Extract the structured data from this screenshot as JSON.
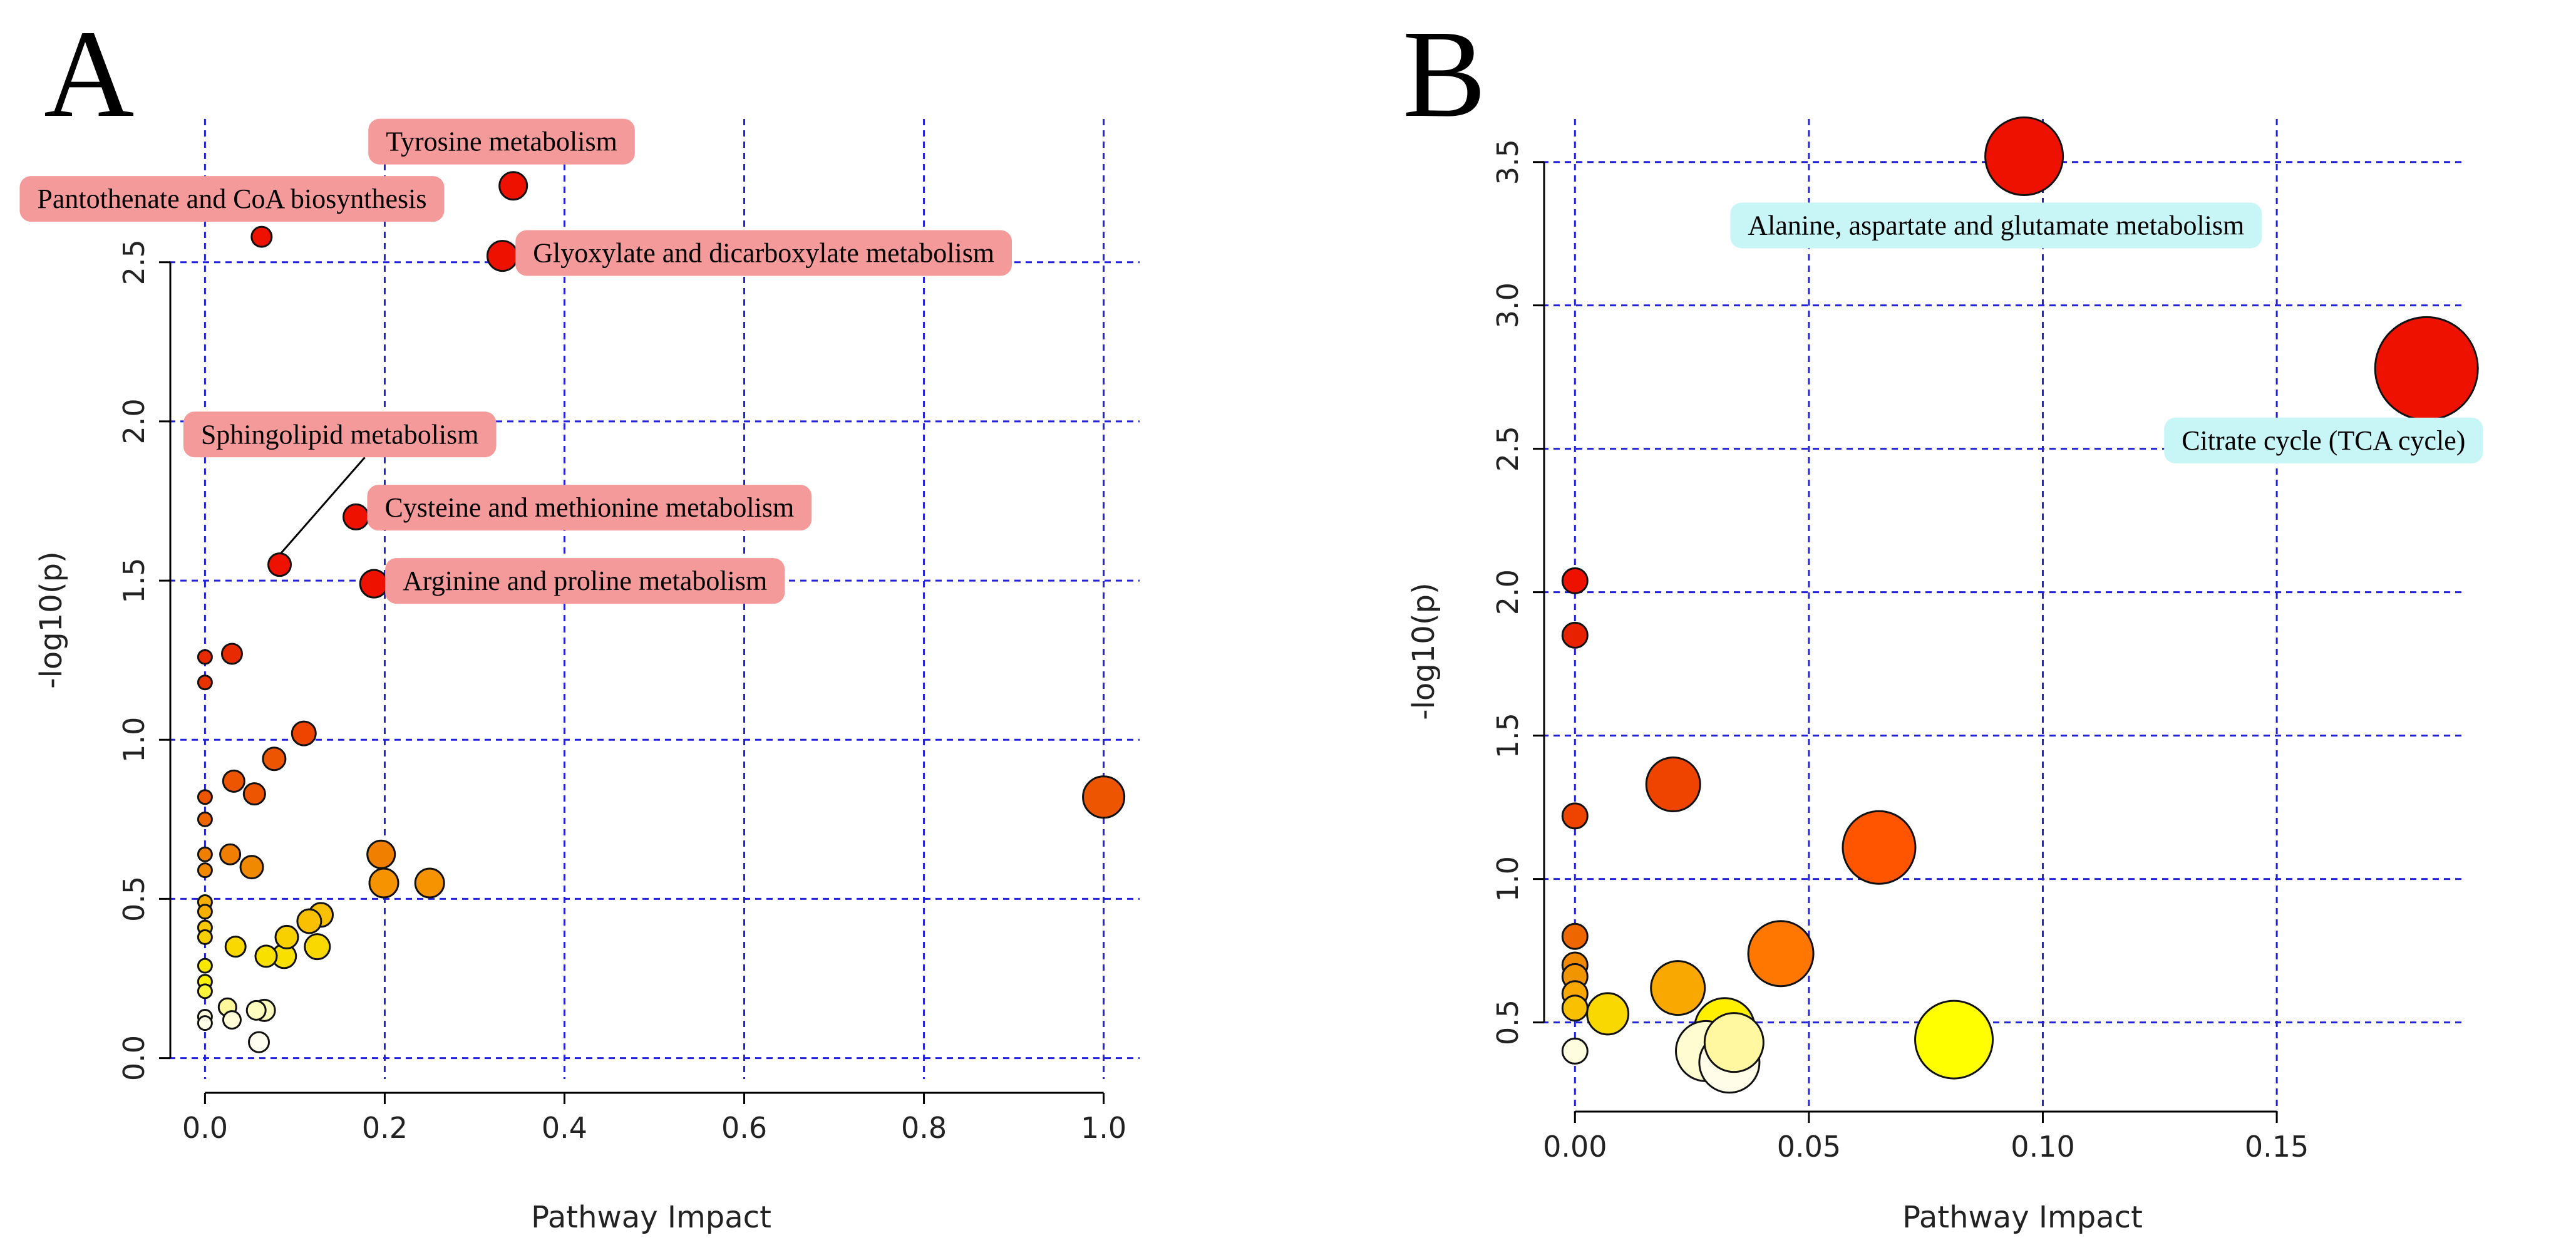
{
  "chart_data": [
    {
      "panel_label": "A",
      "type": "scatter",
      "xlabel": "Pathway Impact",
      "ylabel": "-log10(p)",
      "xlim": [
        -0.04,
        1.04
      ],
      "ylim": [
        -0.05,
        2.95
      ],
      "xticks": [
        0.0,
        0.2,
        0.4,
        0.6,
        0.8,
        1.0
      ],
      "xtick_labels": [
        "0.0",
        "0.2",
        "0.4",
        "0.6",
        "0.8",
        "1.0"
      ],
      "yticks": [
        0.0,
        0.5,
        1.0,
        1.5,
        2.0,
        2.5
      ],
      "ytick_labels": [
        "0.0",
        "0.5",
        "1.0",
        "1.5",
        "2.0",
        "2.5"
      ],
      "grid": true,
      "annotation_color": "#f59a9a",
      "points": [
        {
          "x": 0.343,
          "y": 2.74,
          "r": 22,
          "color": "#ee1100"
        },
        {
          "x": 0.063,
          "y": 2.58,
          "r": 16,
          "color": "#ee1100"
        },
        {
          "x": 0.331,
          "y": 2.52,
          "r": 24,
          "color": "#ee1100"
        },
        {
          "x": 0.168,
          "y": 1.7,
          "r": 20,
          "color": "#ee1100"
        },
        {
          "x": 0.083,
          "y": 1.55,
          "r": 18,
          "color": "#ee1100"
        },
        {
          "x": 0.188,
          "y": 1.49,
          "r": 22,
          "color": "#ee1100"
        },
        {
          "x": 0.0,
          "y": 1.26,
          "r": 11,
          "color": "#e82a00"
        },
        {
          "x": 0.03,
          "y": 1.27,
          "r": 16,
          "color": "#e82a00"
        },
        {
          "x": 0.0,
          "y": 1.18,
          "r": 11,
          "color": "#e83300"
        },
        {
          "x": 0.11,
          "y": 1.02,
          "r": 19,
          "color": "#ee4400"
        },
        {
          "x": 0.077,
          "y": 0.94,
          "r": 18,
          "color": "#ee5500"
        },
        {
          "x": 0.032,
          "y": 0.87,
          "r": 17,
          "color": "#ee5500"
        },
        {
          "x": 0.055,
          "y": 0.83,
          "r": 17,
          "color": "#ee5500"
        },
        {
          "x": 0.0,
          "y": 0.82,
          "r": 11,
          "color": "#ee5500"
        },
        {
          "x": 1.0,
          "y": 0.82,
          "r": 33,
          "color": "#ee5500"
        },
        {
          "x": 0.0,
          "y": 0.75,
          "r": 11,
          "color": "#ee6600"
        },
        {
          "x": 0.196,
          "y": 0.64,
          "r": 22,
          "color": "#f07f00"
        },
        {
          "x": 0.028,
          "y": 0.64,
          "r": 16,
          "color": "#f07f00"
        },
        {
          "x": 0.0,
          "y": 0.64,
          "r": 11,
          "color": "#f07f00"
        },
        {
          "x": 0.052,
          "y": 0.6,
          "r": 18,
          "color": "#f08800"
        },
        {
          "x": 0.0,
          "y": 0.59,
          "r": 11,
          "color": "#f08800"
        },
        {
          "x": 0.199,
          "y": 0.55,
          "r": 23,
          "color": "#f59400"
        },
        {
          "x": 0.25,
          "y": 0.55,
          "r": 23,
          "color": "#f59400"
        },
        {
          "x": 0.0,
          "y": 0.49,
          "r": 11,
          "color": "#f7b000"
        },
        {
          "x": 0.0,
          "y": 0.46,
          "r": 11,
          "color": "#f7b000"
        },
        {
          "x": 0.129,
          "y": 0.45,
          "r": 19,
          "color": "#f8c000"
        },
        {
          "x": 0.116,
          "y": 0.43,
          "r": 19,
          "color": "#f8c000"
        },
        {
          "x": 0.0,
          "y": 0.41,
          "r": 11,
          "color": "#f8c800"
        },
        {
          "x": 0.0,
          "y": 0.38,
          "r": 11,
          "color": "#f8d000"
        },
        {
          "x": 0.091,
          "y": 0.38,
          "r": 18,
          "color": "#f8d000"
        },
        {
          "x": 0.034,
          "y": 0.35,
          "r": 16,
          "color": "#f8d800"
        },
        {
          "x": 0.125,
          "y": 0.35,
          "r": 20,
          "color": "#f8d800"
        },
        {
          "x": 0.068,
          "y": 0.32,
          "r": 17,
          "color": "#f8e000"
        },
        {
          "x": 0.088,
          "y": 0.32,
          "r": 19,
          "color": "#f8e000"
        },
        {
          "x": 0.0,
          "y": 0.29,
          "r": 11,
          "color": "#f8e800"
        },
        {
          "x": 0.0,
          "y": 0.24,
          "r": 11,
          "color": "#fff200"
        },
        {
          "x": 0.0,
          "y": 0.21,
          "r": 11,
          "color": "#fff53a"
        },
        {
          "x": 0.025,
          "y": 0.16,
          "r": 14,
          "color": "#fff89a"
        },
        {
          "x": 0.057,
          "y": 0.15,
          "r": 15,
          "color": "#fffcc0"
        },
        {
          "x": 0.066,
          "y": 0.15,
          "r": 17,
          "color": "#fffcc0"
        },
        {
          "x": 0.03,
          "y": 0.12,
          "r": 14,
          "color": "#fffdd8"
        },
        {
          "x": 0.0,
          "y": 0.13,
          "r": 11,
          "color": "#fffde0"
        },
        {
          "x": 0.0,
          "y": 0.11,
          "r": 11,
          "color": "#fffde6"
        },
        {
          "x": 0.06,
          "y": 0.05,
          "r": 16,
          "color": "#fffef0"
        }
      ],
      "annotations": [
        {
          "text": "Tyrosine metabolism",
          "px": 0.343,
          "py": 2.74,
          "anchor_x": 0.33,
          "anchor_y": 2.88,
          "ha": "center"
        },
        {
          "text": "Pantothenate and CoA biosynthesis",
          "px": 0.063,
          "py": 2.58,
          "anchor_x": 0.03,
          "anchor_y": 2.7,
          "ha": "center"
        },
        {
          "text": "Glyoxylate and dicarboxylate metabolism",
          "px": 0.331,
          "py": 2.52,
          "anchor_x": 0.365,
          "anchor_y": 2.53,
          "ha": "left"
        },
        {
          "text": "Sphingolipid metabolism",
          "px": 0.083,
          "py": 1.55,
          "anchor_x": 0.15,
          "anchor_y": 1.96,
          "ha": "center",
          "leader": true
        },
        {
          "text": "Cysteine and methionine metabolism",
          "px": 0.168,
          "py": 1.7,
          "anchor_x": 0.2,
          "anchor_y": 1.73,
          "ha": "left"
        },
        {
          "text": "Arginine and proline metabolism",
          "px": 0.188,
          "py": 1.49,
          "anchor_x": 0.22,
          "anchor_y": 1.5,
          "ha": "left"
        }
      ]
    },
    {
      "panel_label": "B",
      "type": "scatter",
      "xlabel": "Pathway Impact",
      "ylabel": "-log10(p)",
      "xlim": [
        -0.007,
        0.19
      ],
      "ylim": [
        0.2,
        3.65
      ],
      "xticks": [
        0.0,
        0.05,
        0.1,
        0.15
      ],
      "xtick_labels": [
        "0.00",
        "0.05",
        "0.10",
        "0.15"
      ],
      "yticks": [
        0.5,
        1.0,
        1.5,
        2.0,
        2.5,
        3.0,
        3.5
      ],
      "ytick_labels": [
        "0.5",
        "1.0",
        "1.5",
        "2.0",
        "2.5",
        "3.0",
        "3.5"
      ],
      "grid": true,
      "annotation_color": "#c8f6f6",
      "points": [
        {
          "x": 0.096,
          "y": 3.52,
          "r": 62,
          "color": "#ee1100"
        },
        {
          "x": 0.182,
          "y": 2.78,
          "r": 82,
          "color": "#ee1100"
        },
        {
          "x": 0.0,
          "y": 2.04,
          "r": 20,
          "color": "#ee1100"
        },
        {
          "x": 0.0,
          "y": 1.85,
          "r": 20,
          "color": "#e82200"
        },
        {
          "x": 0.021,
          "y": 1.33,
          "r": 43,
          "color": "#ee4400"
        },
        {
          "x": 0.0,
          "y": 1.22,
          "r": 20,
          "color": "#ee4400"
        },
        {
          "x": 0.065,
          "y": 1.11,
          "r": 58,
          "color": "#ff5500"
        },
        {
          "x": 0.0,
          "y": 0.8,
          "r": 20,
          "color": "#ee6600"
        },
        {
          "x": 0.044,
          "y": 0.74,
          "r": 52,
          "color": "#ff7700"
        },
        {
          "x": 0.0,
          "y": 0.7,
          "r": 20,
          "color": "#f08800"
        },
        {
          "x": 0.0,
          "y": 0.66,
          "r": 20,
          "color": "#f09400"
        },
        {
          "x": 0.022,
          "y": 0.62,
          "r": 43,
          "color": "#f8a800"
        },
        {
          "x": 0.0,
          "y": 0.6,
          "r": 20,
          "color": "#f8a800"
        },
        {
          "x": 0.0,
          "y": 0.55,
          "r": 20,
          "color": "#f8c000"
        },
        {
          "x": 0.007,
          "y": 0.53,
          "r": 33,
          "color": "#f8d800"
        },
        {
          "x": 0.032,
          "y": 0.48,
          "r": 48,
          "color": "#fff000"
        },
        {
          "x": 0.081,
          "y": 0.44,
          "r": 62,
          "color": "#ffff00"
        },
        {
          "x": 0.034,
          "y": 0.43,
          "r": 47,
          "color": "#fff8a0"
        },
        {
          "x": 0.0,
          "y": 0.4,
          "r": 20,
          "color": "#fffde0"
        },
        {
          "x": 0.028,
          "y": 0.4,
          "r": 48,
          "color": "#fffcd2"
        },
        {
          "x": 0.033,
          "y": 0.36,
          "r": 48,
          "color": "#fffde8"
        }
      ],
      "annotations": [
        {
          "text": "Alanine, aspartate and glutamate metabolism",
          "px": 0.096,
          "py": 3.52,
          "anchor_x": 0.09,
          "anchor_y": 3.28,
          "ha": "center"
        },
        {
          "text": "Citrate cycle (TCA cycle)",
          "px": 0.182,
          "py": 2.78,
          "anchor_x": 0.16,
          "anchor_y": 2.53,
          "ha": "center"
        }
      ]
    }
  ]
}
